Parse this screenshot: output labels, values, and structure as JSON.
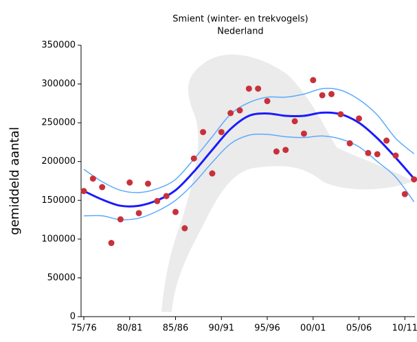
{
  "chart_data": {
    "type": "scatter",
    "title": "Smient (winter- en trekvogels)",
    "subtitle": "Nederland",
    "y_label": "gemiddeld aantal",
    "xlim": [
      1974.7,
      2011.1
    ],
    "ylim": [
      0,
      350000
    ],
    "yticks": [
      0,
      50000,
      100000,
      150000,
      200000,
      250000,
      300000,
      350000
    ],
    "xticks": [
      {
        "value": 1975,
        "label": "75/76"
      },
      {
        "value": 1980,
        "label": "80/81"
      },
      {
        "value": 1985,
        "label": "85/86"
      },
      {
        "value": 1990,
        "label": "90/91"
      },
      {
        "value": 1995,
        "label": "95/96"
      },
      {
        "value": 2000,
        "label": "00/01"
      },
      {
        "value": 2005,
        "label": "05/06"
      },
      {
        "value": 2010,
        "label": "10/11"
      }
    ],
    "points": {
      "color": "#c8313a",
      "x": [
        1975,
        1976,
        1977,
        1978,
        1979,
        1980,
        1981,
        1982,
        1983,
        1984,
        1985,
        1986,
        1987,
        1988,
        1989,
        1990,
        1991,
        1992,
        1993,
        1994,
        1995,
        1996,
        1997,
        1998,
        1999,
        2000,
        2001,
        2002,
        2003,
        2004,
        2005,
        2006,
        2007,
        2008,
        2009,
        2010,
        2011
      ],
      "values": [
        162000,
        178000,
        167000,
        95000,
        125500,
        173000,
        133500,
        171500,
        149000,
        155500,
        135000,
        114000,
        204000,
        238000,
        184700,
        238000,
        262500,
        266000,
        294000,
        294000,
        278000,
        213000,
        215000,
        252000,
        236000,
        305000,
        285500,
        287000,
        261000,
        223500,
        255500,
        211000,
        209500,
        227000,
        207700,
        158000,
        177000
      ]
    },
    "trend": {
      "color": "#1a1aff",
      "band_color": "#5aa9ff",
      "x": [
        1975,
        1977,
        1979,
        1981,
        1983,
        1985,
        1987,
        1989,
        1991,
        1993,
        1995,
        1997,
        1999,
        2001,
        2003,
        2005,
        2007,
        2009,
        2011
      ],
      "values": [
        162000,
        151000,
        143000,
        143000,
        150000,
        163000,
        187000,
        215000,
        242000,
        259000,
        262000,
        259000,
        259000,
        263000,
        261000,
        250000,
        230000,
        205000,
        178000
      ],
      "upper": [
        190000,
        174000,
        163000,
        160000,
        165000,
        177000,
        203000,
        232000,
        261000,
        276000,
        283000,
        283000,
        287000,
        294000,
        292000,
        280000,
        260000,
        230000,
        210000
      ],
      "lower": [
        130000,
        130000,
        125000,
        127000,
        136000,
        150000,
        172000,
        199000,
        223000,
        234000,
        235000,
        232000,
        231000,
        233000,
        229000,
        219000,
        200000,
        180000,
        148000
      ]
    }
  }
}
